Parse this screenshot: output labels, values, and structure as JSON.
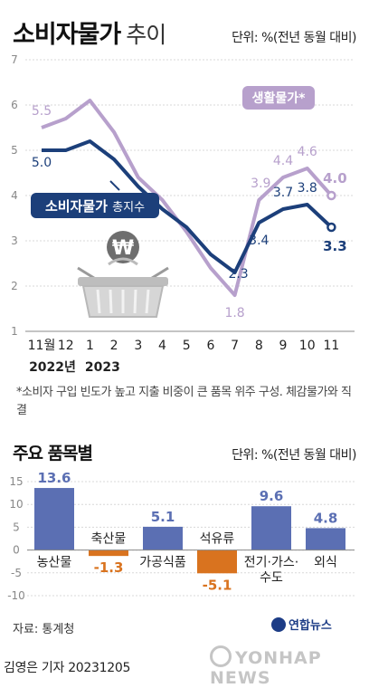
{
  "header": {
    "title": "소비자물가",
    "title_suffix": "추이",
    "unit": "단위: %(전년 동월 대비)"
  },
  "footnote": "*소비자 구입 빈도가 높고 지출 비중이 큰 품목 위주 구성. 체감물가와 직결",
  "section2": {
    "title": "주요 품목별",
    "unit": "단위: %(전년 동월 대비)"
  },
  "source": "자료: 통계청",
  "byline": "김영은 기자  20231205",
  "logo_text": "연합뉴스",
  "watermark": "YONHAP NEWS",
  "colors": {
    "cpi": "#1c3f7a",
    "living": "#b7a0cc",
    "bar_positive": "#5b6fb3",
    "bar_negative": "#d9731f"
  },
  "chart_data": [
    {
      "type": "line",
      "x": [
        "11월",
        "12",
        "1",
        "2",
        "3",
        "4",
        "5",
        "6",
        "7",
        "8",
        "9",
        "10",
        "11"
      ],
      "year_labels": [
        "2022년",
        "2023"
      ],
      "ylim": [
        1,
        7
      ],
      "yticks": [
        1,
        2,
        3,
        4,
        5,
        6,
        7
      ],
      "series": [
        {
          "name": "소비자물가",
          "name_suffix": "총지수",
          "values": [
            5.0,
            5.0,
            5.2,
            4.8,
            4.2,
            3.7,
            3.3,
            2.7,
            2.3,
            3.4,
            3.7,
            3.8,
            3.3
          ],
          "labels": [
            "5.0",
            "3.4",
            "3.7",
            "3.8",
            "3.3",
            "2.3"
          ]
        },
        {
          "name": "생활물가*",
          "values": [
            5.5,
            5.7,
            6.1,
            5.4,
            4.4,
            3.9,
            3.2,
            2.4,
            1.8,
            3.9,
            4.4,
            4.6,
            4.0
          ],
          "labels": [
            "5.5",
            "1.8",
            "3.9",
            "4.4",
            "4.6",
            "4.0"
          ]
        }
      ]
    },
    {
      "type": "bar",
      "categories": [
        "농산물",
        "축산물",
        "가공식품",
        "석유류",
        "전기·가스·수도",
        "외식"
      ],
      "category_lines": [
        [
          "농산물"
        ],
        [
          "축산물"
        ],
        [
          "가공식품"
        ],
        [
          "석유류"
        ],
        [
          "전기·가스·",
          "수도"
        ],
        [
          "외식"
        ]
      ],
      "values": [
        13.6,
        -1.3,
        5.1,
        -5.1,
        9.6,
        4.8
      ],
      "value_labels": [
        "13.6",
        "-1.3",
        "5.1",
        "-5.1",
        "9.6",
        "4.8"
      ],
      "ylim": [
        -10,
        15
      ],
      "yticks": [
        -10,
        -5,
        0,
        5,
        10,
        15
      ]
    }
  ]
}
